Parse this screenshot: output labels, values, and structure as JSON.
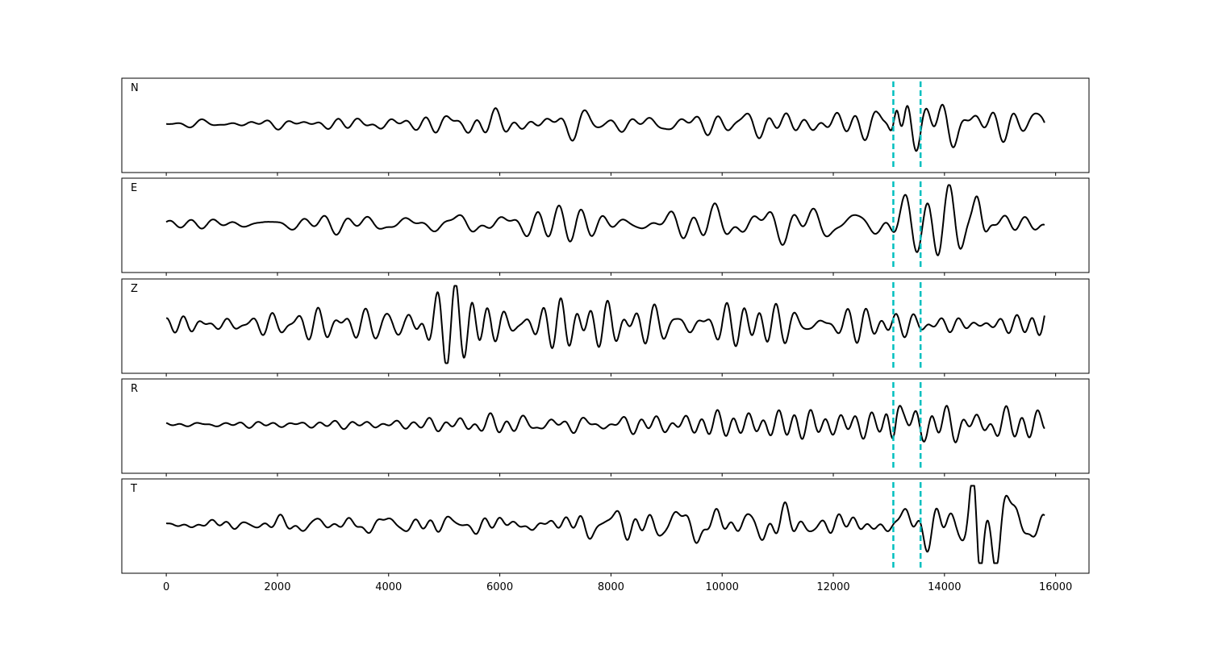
{
  "chart_data": {
    "type": "line",
    "title": "",
    "xlabel": "",
    "ylabel": "",
    "xlim": [
      -800,
      16600
    ],
    "ylim": [
      -1,
      1
    ],
    "xticks": [
      0,
      2000,
      4000,
      6000,
      8000,
      10000,
      12000,
      14000,
      16000
    ],
    "x_range": [
      0,
      15800
    ],
    "grid": false,
    "legend": "none",
    "markers": [
      13080,
      13570
    ],
    "marker_color": "#00bfbf",
    "line_color": "#000000",
    "panels": [
      {
        "label": "N",
        "segments": [
          [
            0,
            0.08
          ],
          [
            4500,
            0.14
          ],
          [
            5500,
            0.3
          ],
          [
            7000,
            0.32
          ],
          [
            9000,
            0.26
          ],
          [
            12800,
            0.28
          ],
          [
            13050,
            0.5
          ],
          [
            13200,
            0.9
          ],
          [
            13650,
            0.55
          ],
          [
            15800,
            0.38
          ]
        ],
        "events": [
          {
            "x": 13150,
            "amp": 0.85,
            "width": 120
          }
        ]
      },
      {
        "label": "E",
        "segments": [
          [
            0,
            0.12
          ],
          [
            4500,
            0.18
          ],
          [
            5400,
            0.35
          ],
          [
            9000,
            0.4
          ],
          [
            12800,
            0.38
          ],
          [
            13100,
            0.55
          ],
          [
            13600,
            0.6
          ],
          [
            14600,
            0.95
          ],
          [
            15800,
            0.55
          ]
        ],
        "events": [
          {
            "x": 14600,
            "amp": 0.9,
            "width": 160
          }
        ]
      },
      {
        "label": "Z",
        "segments": [
          [
            0,
            0.15
          ],
          [
            500,
            0.35
          ],
          [
            1400,
            0.3
          ],
          [
            4300,
            0.3
          ],
          [
            4600,
            0.65
          ],
          [
            5500,
            0.85
          ],
          [
            7200,
            0.85
          ],
          [
            8500,
            0.55
          ],
          [
            12000,
            0.4
          ],
          [
            13500,
            0.35
          ],
          [
            15800,
            0.45
          ]
        ],
        "events": []
      },
      {
        "label": "R",
        "segments": [
          [
            0,
            0.07
          ],
          [
            4500,
            0.12
          ],
          [
            5500,
            0.3
          ],
          [
            7000,
            0.3
          ],
          [
            9000,
            0.26
          ],
          [
            12800,
            0.28
          ],
          [
            13050,
            0.5
          ],
          [
            13200,
            0.9
          ],
          [
            13650,
            0.55
          ],
          [
            15800,
            0.4
          ]
        ],
        "events": [
          {
            "x": 13150,
            "amp": 0.85,
            "width": 120
          }
        ]
      },
      {
        "label": "T",
        "segments": [
          [
            0,
            0.12
          ],
          [
            5000,
            0.2
          ],
          [
            9000,
            0.35
          ],
          [
            10500,
            0.4
          ],
          [
            12800,
            0.3
          ],
          [
            13100,
            0.45
          ],
          [
            13800,
            0.5
          ],
          [
            14600,
            0.95
          ],
          [
            15800,
            0.4
          ]
        ],
        "events": [
          {
            "x": 14620,
            "amp": -0.95,
            "width": 120
          }
        ]
      }
    ]
  }
}
